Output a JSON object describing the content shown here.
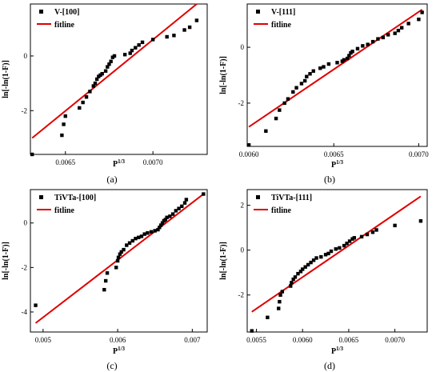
{
  "figure": {
    "caption_labels": [
      "(a)",
      "(b)",
      "(c)",
      "(d)"
    ]
  },
  "colors": {
    "points": "#000000",
    "fitline": "#e00000"
  },
  "chart_data": [
    {
      "type": "scatter",
      "xlabel": "P1/3",
      "xlabel_base": "P",
      "xlabel_sup": "1/3",
      "ylabel": "ln[-ln(1-F)]",
      "xlim": [
        0.0063,
        0.00731
      ],
      "ylim": [
        -3.6,
        1.9
      ],
      "xticks": [
        0.0065,
        0.007
      ],
      "xtick_labels": [
        "0.0065",
        "0.0070"
      ],
      "yticks": [
        -2,
        0
      ],
      "ytick_labels": [
        "-2",
        "0"
      ],
      "legend_position": "top-left",
      "series": [
        {
          "name": "V-[100]",
          "kind": "points",
          "x": [
            0.00631,
            0.00648,
            0.00649,
            0.0065,
            0.00658,
            0.0066,
            0.00662,
            0.00664,
            0.00666,
            0.00667,
            0.00668,
            0.00669,
            0.0067,
            0.00671,
            0.00673,
            0.00674,
            0.00675,
            0.00676,
            0.00677,
            0.00678,
            0.00684,
            0.00687,
            0.00688,
            0.0069,
            0.00692,
            0.00694,
            0.007,
            0.00708,
            0.00712,
            0.00718,
            0.00721,
            0.00725
          ],
          "y": [
            -3.6,
            -2.9,
            -2.5,
            -2.2,
            -1.9,
            -1.7,
            -1.5,
            -1.3,
            -1.1,
            -1.0,
            -0.85,
            -0.75,
            -0.7,
            -0.65,
            -0.55,
            -0.4,
            -0.3,
            -0.2,
            -0.05,
            0.0,
            0.05,
            0.1,
            0.2,
            0.3,
            0.4,
            0.5,
            0.6,
            0.7,
            0.75,
            0.95,
            1.05,
            1.3
          ]
        },
        {
          "name": "fitline",
          "kind": "line",
          "x": [
            0.00631,
            0.00725
          ],
          "y": [
            -3.0,
            1.9
          ]
        }
      ]
    },
    {
      "type": "scatter",
      "xlabel": "P1/3",
      "xlabel_base": "P",
      "xlabel_sup": "1/3",
      "ylabel": "ln[-ln(1-F)]",
      "xlim": [
        0.00599,
        0.00705
      ],
      "ylim": [
        -3.55,
        1.55
      ],
      "xticks": [
        0.006,
        0.0065,
        0.007
      ],
      "xtick_labels": [
        "0.0060",
        "0.0065",
        "0.0070"
      ],
      "yticks": [
        -2,
        0
      ],
      "ytick_labels": [
        "-2",
        "0"
      ],
      "legend_position": "top-left",
      "series": [
        {
          "name": "V-[111]",
          "kind": "points",
          "x": [
            0.006,
            0.0061,
            0.00616,
            0.00618,
            0.00621,
            0.00623,
            0.00626,
            0.00628,
            0.00631,
            0.00633,
            0.00634,
            0.00636,
            0.00638,
            0.00642,
            0.00644,
            0.00647,
            0.00652,
            0.00655,
            0.00656,
            0.00658,
            0.00659,
            0.0066,
            0.00661,
            0.00664,
            0.00667,
            0.0067,
            0.00673,
            0.00676,
            0.00679,
            0.00682,
            0.00686,
            0.00688,
            0.0069,
            0.00694,
            0.007,
            0.00702
          ],
          "y": [
            -3.5,
            -3.0,
            -2.55,
            -2.25,
            -2.0,
            -1.85,
            -1.6,
            -1.45,
            -1.3,
            -1.2,
            -1.05,
            -0.95,
            -0.85,
            -0.75,
            -0.7,
            -0.6,
            -0.55,
            -0.5,
            -0.45,
            -0.4,
            -0.3,
            -0.2,
            -0.15,
            -0.05,
            0.05,
            0.1,
            0.2,
            0.3,
            0.35,
            0.45,
            0.5,
            0.6,
            0.7,
            0.85,
            1.0,
            1.25
          ]
        },
        {
          "name": "fitline",
          "kind": "line",
          "x": [
            0.006,
            0.00702
          ],
          "y": [
            -2.85,
            1.35
          ]
        }
      ]
    },
    {
      "type": "scatter",
      "xlabel": "P1/3",
      "xlabel_base": "P",
      "xlabel_sup": "1/3",
      "ylabel": "ln[-ln(1-F)]",
      "xlim": [
        0.00483,
        0.0072
      ],
      "ylim": [
        -4.9,
        1.5
      ],
      "xticks": [
        0.005,
        0.006,
        0.007
      ],
      "xtick_labels": [
        "0.005",
        "0.006",
        "0.007"
      ],
      "yticks": [
        -4,
        -2,
        0
      ],
      "ytick_labels": [
        "-4",
        "-2",
        "0"
      ],
      "legend_position": "top-left",
      "series": [
        {
          "name": "TiVTa-[100]",
          "kind": "points",
          "x": [
            0.0049,
            0.00582,
            0.00584,
            0.00586,
            0.00598,
            0.006,
            0.00601,
            0.00603,
            0.00605,
            0.00608,
            0.00612,
            0.00616,
            0.0062,
            0.00624,
            0.00628,
            0.00632,
            0.00636,
            0.0064,
            0.00645,
            0.0065,
            0.00654,
            0.00656,
            0.00658,
            0.0066,
            0.00662,
            0.00664,
            0.00666,
            0.0067,
            0.00674,
            0.00678,
            0.00682,
            0.00686,
            0.0069,
            0.00692,
            0.00715
          ],
          "y": [
            -3.7,
            -3.0,
            -2.6,
            -2.25,
            -2.0,
            -1.7,
            -1.55,
            -1.4,
            -1.3,
            -1.2,
            -1.0,
            -0.9,
            -0.8,
            -0.7,
            -0.65,
            -0.6,
            -0.5,
            -0.45,
            -0.4,
            -0.35,
            -0.3,
            -0.2,
            -0.1,
            0.0,
            0.1,
            0.15,
            0.25,
            0.3,
            0.4,
            0.55,
            0.65,
            0.75,
            0.9,
            1.05,
            1.3
          ]
        },
        {
          "name": "fitline",
          "kind": "line",
          "x": [
            0.0049,
            0.00715
          ],
          "y": [
            -4.5,
            1.3
          ]
        }
      ]
    },
    {
      "type": "scatter",
      "xlabel": "P1/3",
      "xlabel_base": "P",
      "xlabel_sup": "1/3",
      "ylabel": "ln[-ln(1-F)]",
      "xlim": [
        0.0054,
        0.00735
      ],
      "ylim": [
        -3.65,
        2.7
      ],
      "xticks": [
        0.0055,
        0.006,
        0.0065,
        0.007
      ],
      "xtick_labels": [
        "0.0055",
        "0.0060",
        "0.0065",
        "0.0070"
      ],
      "yticks": [
        -2,
        0,
        2
      ],
      "ytick_labels": [
        "-2",
        "0",
        "2"
      ],
      "legend_position": "top-left",
      "series": [
        {
          "name": "TiVTa-[111]",
          "kind": "points",
          "x": [
            0.00545,
            0.00562,
            0.00574,
            0.00575,
            0.00576,
            0.00578,
            0.00587,
            0.00588,
            0.0059,
            0.00592,
            0.00595,
            0.00598,
            0.006,
            0.00603,
            0.00606,
            0.00609,
            0.00612,
            0.00615,
            0.0062,
            0.00625,
            0.00628,
            0.00631,
            0.00636,
            0.0064,
            0.00645,
            0.00648,
            0.00651,
            0.00654,
            0.00656,
            0.00664,
            0.0067,
            0.00676,
            0.0068,
            0.007,
            0.00728
          ],
          "y": [
            -3.6,
            -3.0,
            -2.6,
            -2.3,
            -2.0,
            -1.85,
            -1.6,
            -1.45,
            -1.3,
            -1.2,
            -1.05,
            -0.95,
            -0.85,
            -0.75,
            -0.65,
            -0.55,
            -0.45,
            -0.35,
            -0.3,
            -0.2,
            -0.15,
            -0.05,
            0.05,
            0.1,
            0.2,
            0.3,
            0.4,
            0.5,
            0.55,
            0.6,
            0.7,
            0.8,
            0.9,
            1.1,
            1.3
          ]
        },
        {
          "name": "fitline",
          "kind": "line",
          "x": [
            0.00545,
            0.00728
          ],
          "y": [
            -2.75,
            2.4
          ]
        }
      ]
    }
  ]
}
